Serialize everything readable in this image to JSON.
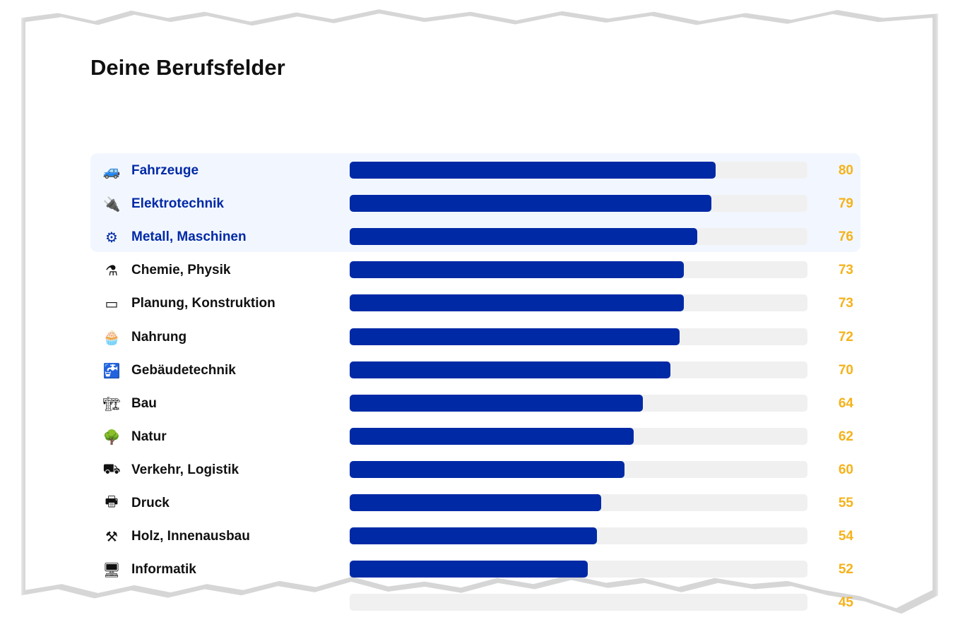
{
  "title": "Deine Berufsfelder",
  "colors": {
    "bar": "#0029a6",
    "track": "#f0f0f0",
    "value": "#f5b21b",
    "highlight": "#f2f7ff"
  },
  "chart_data": {
    "type": "bar",
    "orientation": "horizontal",
    "xlim": [
      0,
      100
    ],
    "categories": [
      "Fahrzeuge",
      "Elektrotechnik",
      "Metall, Maschinen",
      "Chemie, Physik",
      "Planung, Konstruktion",
      "Nahrung",
      "Gebäudetechnik",
      "Bau",
      "Natur",
      "Verkehr, Logistik",
      "Druck",
      "Holz, Innenausbau",
      "Informatik",
      ""
    ],
    "values": [
      80,
      79,
      76,
      73,
      73,
      72,
      70,
      64,
      62,
      60,
      55,
      54,
      52,
      45
    ],
    "icons": [
      "car-icon",
      "plug-icon",
      "machine-icon",
      "flask-icon",
      "blueprint-icon",
      "cupcake-icon",
      "faucet-icon",
      "crane-icon",
      "tree-icon",
      "hand-truck-icon",
      "printer-icon",
      "plane-tool-icon",
      "monitor-icon",
      ""
    ],
    "highlighted_top": 3
  }
}
